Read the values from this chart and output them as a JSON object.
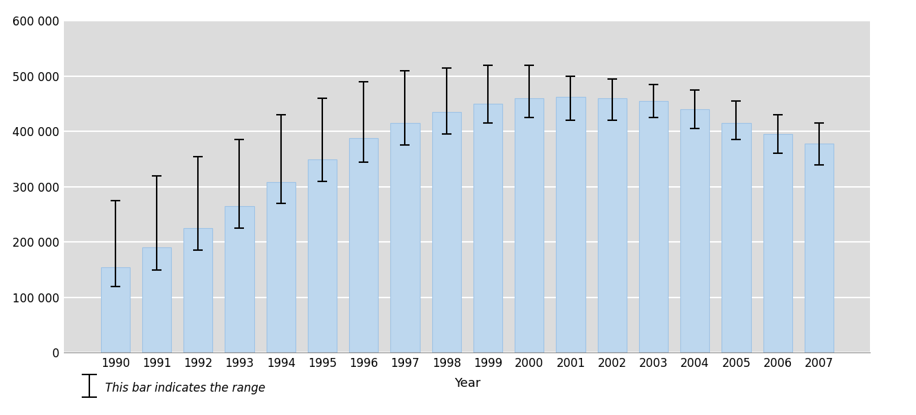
{
  "years": [
    1990,
    1991,
    1992,
    1993,
    1994,
    1995,
    1996,
    1997,
    1998,
    1999,
    2000,
    2001,
    2002,
    2003,
    2004,
    2005,
    2006,
    2007
  ],
  "values": [
    155000,
    190000,
    225000,
    265000,
    308000,
    350000,
    388000,
    415000,
    435000,
    450000,
    460000,
    462000,
    460000,
    455000,
    440000,
    415000,
    395000,
    378000
  ],
  "lower": [
    120000,
    150000,
    185000,
    225000,
    270000,
    310000,
    345000,
    375000,
    395000,
    415000,
    425000,
    420000,
    420000,
    425000,
    405000,
    385000,
    360000,
    340000
  ],
  "upper": [
    275000,
    320000,
    355000,
    385000,
    430000,
    460000,
    490000,
    510000,
    515000,
    520000,
    520000,
    500000,
    495000,
    485000,
    475000,
    455000,
    430000,
    415000
  ],
  "bar_color": "#BDD7EE",
  "bar_edge_color": "#9DC3E6",
  "error_color": "black",
  "bg_color": "#DCDCDC",
  "grid_color": "white",
  "xlabel": "Year",
  "ylim": [
    0,
    600000
  ],
  "yticks": [
    0,
    100000,
    200000,
    300000,
    400000,
    500000,
    600000
  ],
  "ytick_labels": [
    "0",
    "100 000",
    "200 000",
    "300 000",
    "400 000",
    "500 000",
    "600 000"
  ],
  "legend_text": "This bar indicates the range",
  "axis_fontsize": 13,
  "tick_fontsize": 12
}
